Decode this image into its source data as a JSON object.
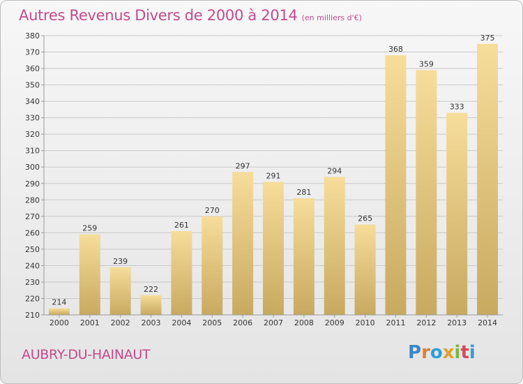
{
  "title": "Autres Revenus Divers de 2000 à 2014",
  "subtitle": "(en milliers d'€)",
  "commune": "AUBRY-DU-HAINAUT",
  "brand": {
    "letters": [
      "P",
      "r",
      "o",
      "x",
      "i",
      "t",
      "i"
    ]
  },
  "colors": {
    "title": "#c34a8d",
    "bar_light": "#f6dd9a",
    "bar_dark": "#c8a960",
    "grid": "#c8c8c8",
    "axis": "#9a9a9a",
    "text": "#333333"
  },
  "chart_data": {
    "type": "bar",
    "title": "Autres Revenus Divers de 2000 à 2014",
    "subtitle": "(en milliers d'€)",
    "categories": [
      "2000",
      "2001",
      "2002",
      "2003",
      "2004",
      "2005",
      "2006",
      "2007",
      "2008",
      "2009",
      "2010",
      "2011",
      "2012",
      "2013",
      "2014"
    ],
    "values": [
      214,
      259,
      239,
      222,
      261,
      270,
      297,
      291,
      281,
      294,
      265,
      368,
      359,
      333,
      375
    ],
    "ylim": [
      210,
      380
    ],
    "ytick_step": 10,
    "grid": true,
    "data_labels": true
  }
}
